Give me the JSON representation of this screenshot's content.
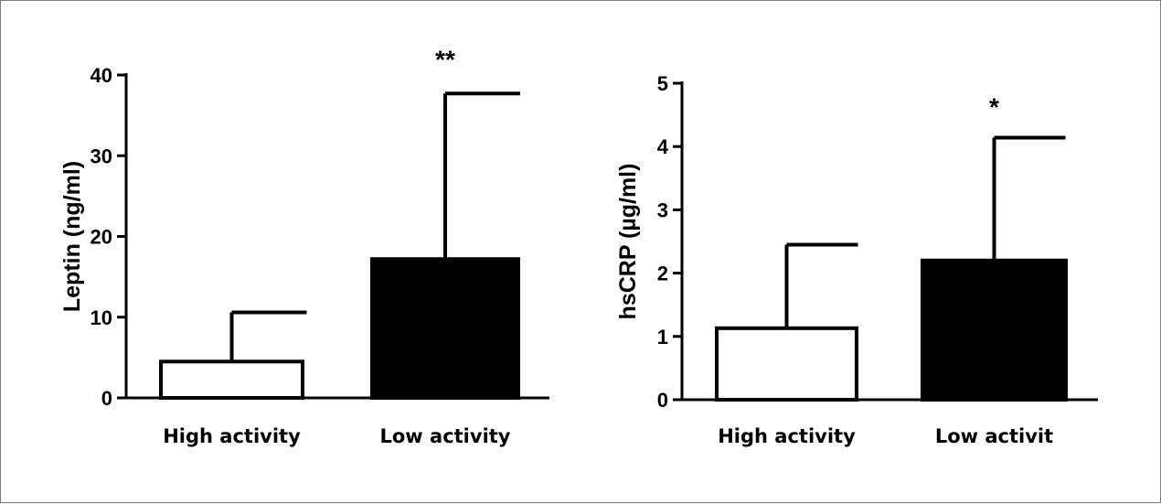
{
  "chart_data": [
    {
      "type": "bar",
      "ylabel": "Leptin (ng/ml)",
      "ylim": [
        0,
        40
      ],
      "yticks": [
        0,
        10,
        20,
        30,
        40
      ],
      "categories": [
        "High activity",
        "Low activity"
      ],
      "values": [
        4.5,
        17.2
      ],
      "error_upper": [
        10.6,
        37.7
      ],
      "annotations": [
        "",
        "**"
      ],
      "fills": [
        "#ffffff",
        "#000000"
      ]
    },
    {
      "type": "bar",
      "ylabel": "hsCRP (µg/ml)",
      "ylim": [
        0,
        5
      ],
      "yticks": [
        0,
        1,
        2,
        3,
        4,
        5
      ],
      "categories": [
        "High activity",
        "Low activit"
      ],
      "values": [
        1.13,
        2.2
      ],
      "error_upper": [
        2.45,
        4.14
      ],
      "annotations": [
        "",
        "*"
      ],
      "fills": [
        "#ffffff",
        "#000000"
      ]
    }
  ]
}
